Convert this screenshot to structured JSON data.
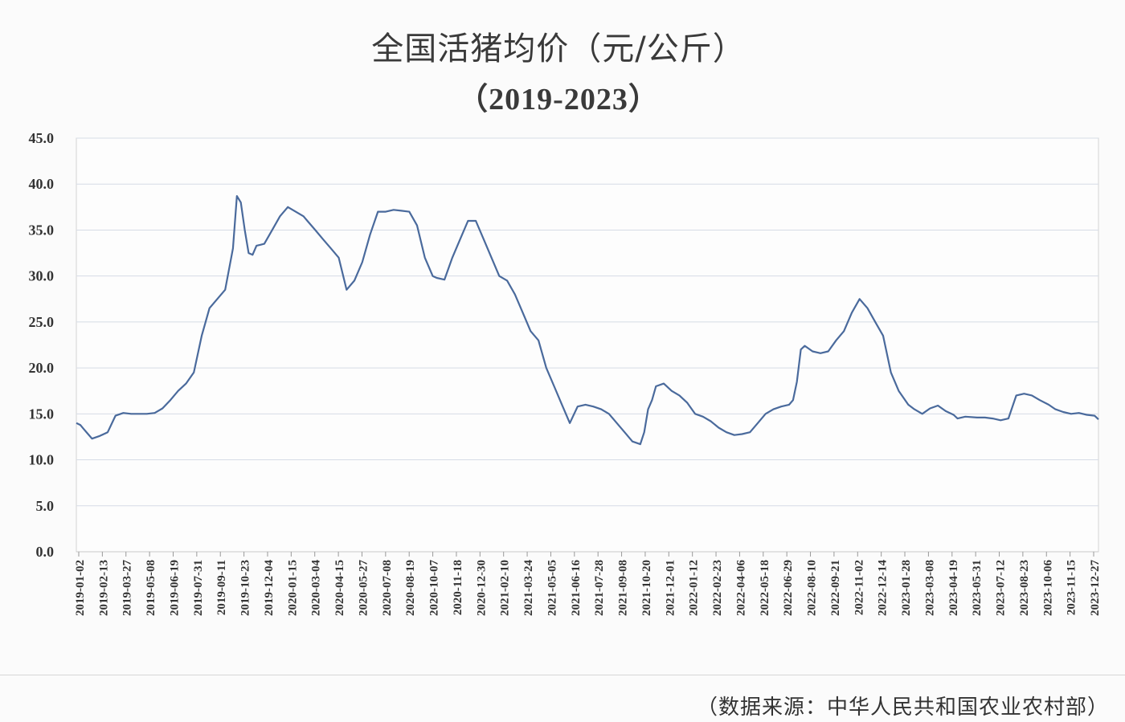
{
  "source_text": "（数据来源：中华人民共和国农业农村部）",
  "chart_data": {
    "type": "line",
    "title": "全国活猪均价（元/公斤）",
    "subtitle": "（2019-2023）",
    "xlabel": "",
    "ylabel": "",
    "ylim": [
      0,
      45
    ],
    "y_ticks": [
      "0.0",
      "5.0",
      "10.0",
      "15.0",
      "20.0",
      "25.0",
      "30.0",
      "35.0",
      "40.0",
      "45.0"
    ],
    "x_tick_labels": [
      "2019-01-02",
      "2019-02-13",
      "2019-03-27",
      "2019-05-08",
      "2019-06-19",
      "2019-07-31",
      "2019-09-11",
      "2019-10-23",
      "2019-12-04",
      "2020-01-15",
      "2020-03-04",
      "2020-04-15",
      "2020-05-27",
      "2020-07-08",
      "2020-08-19",
      "2020-10-07",
      "2020-11-18",
      "2020-12-30",
      "2021-02-10",
      "2021-03-24",
      "2021-05-05",
      "2021-06-16",
      "2021-07-28",
      "2021-09-08",
      "2021-10-20",
      "2021-12-01",
      "2022-01-12",
      "2022-02-23",
      "2022-04-06",
      "2022-05-18",
      "2022-06-29",
      "2022-08-10",
      "2022-09-21",
      "2022-11-02",
      "2022-12-14",
      "2023-01-28",
      "2023-03-08",
      "2023-04-19",
      "2023-05-31",
      "2023-07-12",
      "2023-08-23",
      "2023-10-06",
      "2023-11-15",
      "2023-12-27"
    ],
    "grid": true,
    "line_color": "#4a6a9c",
    "series": [
      {
        "name": "",
        "x": [
          "2019-01-02",
          "2019-01-09",
          "2019-01-16",
          "2019-01-23",
          "2019-01-30",
          "2019-02-13",
          "2019-02-27",
          "2019-03-13",
          "2019-03-27",
          "2019-04-10",
          "2019-04-24",
          "2019-05-08",
          "2019-05-22",
          "2019-06-05",
          "2019-06-19",
          "2019-07-03",
          "2019-07-17",
          "2019-07-31",
          "2019-08-14",
          "2019-08-28",
          "2019-09-11",
          "2019-09-25",
          "2019-10-09",
          "2019-10-16",
          "2019-10-23",
          "2019-10-30",
          "2019-11-06",
          "2019-11-13",
          "2019-11-20",
          "2019-11-27",
          "2019-12-04",
          "2019-12-18",
          "2020-01-01",
          "2020-01-15",
          "2020-02-12",
          "2020-02-19",
          "2020-03-04",
          "2020-03-18",
          "2020-04-01",
          "2020-04-15",
          "2020-04-29",
          "2020-05-13",
          "2020-05-27",
          "2020-06-10",
          "2020-06-24",
          "2020-07-08",
          "2020-07-22",
          "2020-08-05",
          "2020-08-19",
          "2020-09-02",
          "2020-09-16",
          "2020-09-30",
          "2020-10-07",
          "2020-10-21",
          "2020-11-04",
          "2020-11-18",
          "2020-12-02",
          "2020-12-16",
          "2020-12-30",
          "2021-01-13",
          "2021-01-27",
          "2021-02-10",
          "2021-02-24",
          "2021-03-10",
          "2021-03-24",
          "2021-04-07",
          "2021-04-21",
          "2021-05-05",
          "2021-05-19",
          "2021-06-02",
          "2021-06-16",
          "2021-06-30",
          "2021-07-14",
          "2021-07-28",
          "2021-08-11",
          "2021-08-25",
          "2021-09-08",
          "2021-09-22",
          "2021-10-06",
          "2021-10-13",
          "2021-10-20",
          "2021-10-27",
          "2021-11-03",
          "2021-11-17",
          "2021-12-01",
          "2021-12-15",
          "2021-12-29",
          "2022-01-12",
          "2022-01-26",
          "2022-02-09",
          "2022-02-23",
          "2022-03-09",
          "2022-03-23",
          "2022-04-06",
          "2022-04-20",
          "2022-05-04",
          "2022-05-18",
          "2022-06-01",
          "2022-06-15",
          "2022-06-29",
          "2022-07-06",
          "2022-07-13",
          "2022-07-20",
          "2022-07-27",
          "2022-08-10",
          "2022-08-24",
          "2022-09-07",
          "2022-09-21",
          "2022-10-05",
          "2022-10-19",
          "2022-11-02",
          "2022-11-16",
          "2022-11-30",
          "2022-12-14",
          "2022-12-28",
          "2023-01-11",
          "2023-01-28",
          "2023-02-08",
          "2023-02-22",
          "2023-03-08",
          "2023-03-22",
          "2023-04-05",
          "2023-04-19",
          "2023-04-26",
          "2023-05-10",
          "2023-05-31",
          "2023-06-14",
          "2023-06-28",
          "2023-07-12",
          "2023-07-26",
          "2023-08-09",
          "2023-08-23",
          "2023-09-06",
          "2023-09-20",
          "2023-10-06",
          "2023-10-18",
          "2023-11-01",
          "2023-11-15",
          "2023-11-29",
          "2023-12-13",
          "2023-12-27",
          "2024-01-03"
        ],
        "values": [
          14.0,
          13.8,
          13.3,
          12.8,
          12.3,
          12.6,
          13.0,
          14.8,
          15.1,
          15.0,
          15.0,
          15.0,
          15.1,
          15.6,
          16.5,
          17.5,
          18.3,
          19.5,
          23.5,
          26.5,
          27.5,
          28.5,
          33.0,
          38.7,
          38.0,
          35.0,
          32.5,
          32.3,
          33.3,
          33.4,
          33.5,
          35.0,
          36.5,
          37.5,
          36.5,
          36.0,
          35.0,
          34.0,
          33.0,
          32.0,
          28.5,
          29.5,
          31.5,
          34.5,
          37.0,
          37.0,
          37.2,
          37.1,
          37.0,
          35.5,
          32.0,
          30.0,
          29.8,
          29.6,
          32.0,
          34.0,
          36.0,
          36.0,
          34.0,
          32.0,
          30.0,
          29.5,
          28.0,
          26.0,
          24.0,
          23.0,
          20.0,
          18.0,
          16.0,
          14.0,
          15.8,
          16.0,
          15.8,
          15.5,
          15.0,
          14.0,
          13.0,
          12.0,
          11.7,
          13.0,
          15.5,
          16.5,
          18.0,
          18.3,
          17.5,
          17.0,
          16.2,
          15.0,
          14.7,
          14.2,
          13.5,
          13.0,
          12.7,
          12.8,
          13.0,
          14.0,
          15.0,
          15.5,
          15.8,
          16.0,
          16.5,
          18.5,
          22.0,
          22.4,
          21.8,
          21.6,
          21.8,
          23.0,
          24.0,
          26.0,
          27.5,
          26.5,
          25.0,
          23.5,
          19.5,
          17.5,
          16.0,
          15.5,
          15.0,
          15.6,
          15.9,
          15.3,
          14.9,
          14.5,
          14.7,
          14.6,
          14.6,
          14.5,
          14.3,
          14.5,
          17.0,
          17.2,
          17.0,
          16.5,
          16.0,
          15.5,
          15.2,
          15.0,
          15.1,
          14.9,
          14.8,
          14.4
        ]
      }
    ]
  }
}
